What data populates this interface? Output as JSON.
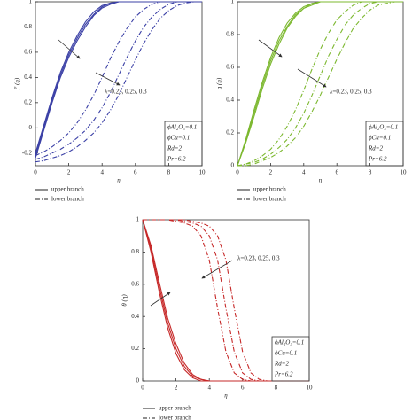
{
  "chart_data": [
    {
      "type": "line",
      "ylabel": "f′ (η)",
      "xlabel": "η",
      "x": [
        0,
        0.5,
        1,
        1.5,
        2,
        2.5,
        3,
        3.5,
        4,
        4.5,
        5,
        5.5,
        6,
        6.5,
        7,
        7.5,
        8,
        8.5,
        9,
        9.5,
        10
      ],
      "xlim": [
        0,
        10
      ],
      "xticks": [
        0,
        2,
        4,
        6,
        8,
        10
      ],
      "ylim": [
        -0.3,
        1
      ],
      "yticks": [
        -0.2,
        0,
        0.2,
        0.4,
        0.6,
        0.8,
        1
      ],
      "series": [
        {
          "name": "upper branch",
          "color": "#3b40a6",
          "dash": "solid",
          "values": [
            -0.2,
            0.02,
            0.24,
            0.44,
            0.6,
            0.73,
            0.84,
            0.92,
            0.97,
            0.99,
            1,
            1,
            1,
            1,
            1,
            1,
            1,
            1,
            1,
            1,
            1
          ]
        },
        {
          "name": "upper branch",
          "color": "#3b40a6",
          "dash": "solid",
          "values": [
            -0.22,
            0,
            0.22,
            0.42,
            0.58,
            0.71,
            0.82,
            0.9,
            0.96,
            0.99,
            1,
            1,
            1,
            1,
            1,
            1,
            1,
            1,
            1,
            1,
            1
          ]
        },
        {
          "name": "upper branch",
          "color": "#3b40a6",
          "dash": "solid",
          "values": [
            -0.24,
            -0.02,
            0.2,
            0.4,
            0.56,
            0.69,
            0.8,
            0.89,
            0.95,
            0.98,
            1,
            1,
            1,
            1,
            1,
            1,
            1,
            1,
            1,
            1,
            1
          ]
        },
        {
          "name": "lower branch",
          "color": "#3b40a6",
          "dash": "dashdot",
          "values": [
            -0.22,
            -0.19,
            -0.15,
            -0.1,
            -0.04,
            0.04,
            0.14,
            0.26,
            0.4,
            0.55,
            0.68,
            0.79,
            0.88,
            0.94,
            0.98,
            1,
            1,
            1,
            1,
            1,
            1
          ]
        },
        {
          "name": "lower branch",
          "color": "#3b40a6",
          "dash": "dashdot",
          "values": [
            -0.25,
            -0.23,
            -0.2,
            -0.17,
            -0.13,
            -0.08,
            -0.02,
            0.06,
            0.16,
            0.28,
            0.42,
            0.56,
            0.69,
            0.8,
            0.88,
            0.94,
            0.98,
            1,
            1,
            1,
            1
          ]
        },
        {
          "name": "lower branch",
          "color": "#3b40a6",
          "dash": "dashdot",
          "values": [
            -0.27,
            -0.26,
            -0.24,
            -0.22,
            -0.19,
            -0.15,
            -0.1,
            -0.04,
            0.04,
            0.14,
            0.26,
            0.4,
            0.54,
            0.67,
            0.78,
            0.87,
            0.93,
            0.97,
            0.99,
            1,
            1
          ]
        }
      ],
      "annotation": "λ=0.23, 0.25, 0.3",
      "params": [
        "ϕAl₂O₃=0.1",
        "ϕCu=0.1",
        "Rd=2",
        "Pr=6.2"
      ]
    },
    {
      "type": "line",
      "ylabel": "g (η)",
      "xlabel": "η",
      "x": [
        0,
        0.5,
        1,
        1.5,
        2,
        2.5,
        3,
        3.5,
        4,
        4.5,
        5,
        5.5,
        6,
        6.5,
        7,
        7.5,
        8,
        8.5,
        9,
        9.5,
        10
      ],
      "xlim": [
        0,
        10
      ],
      "xticks": [
        0,
        2,
        4,
        6,
        8,
        10
      ],
      "ylim": [
        0,
        1
      ],
      "yticks": [
        0,
        0.2,
        0.4,
        0.6,
        0.8,
        1
      ],
      "series": [
        {
          "name": "upper branch",
          "color": "#7cb82f",
          "dash": "solid",
          "values": [
            0,
            0.16,
            0.34,
            0.51,
            0.66,
            0.78,
            0.87,
            0.93,
            0.97,
            0.99,
            1,
            1,
            1,
            1,
            1,
            1,
            1,
            1,
            1,
            1,
            1
          ]
        },
        {
          "name": "upper branch",
          "color": "#7cb82f",
          "dash": "solid",
          "values": [
            0,
            0.15,
            0.32,
            0.49,
            0.64,
            0.76,
            0.85,
            0.92,
            0.96,
            0.99,
            1,
            1,
            1,
            1,
            1,
            1,
            1,
            1,
            1,
            1,
            1
          ]
        },
        {
          "name": "upper branch",
          "color": "#7cb82f",
          "dash": "solid",
          "values": [
            0,
            0.14,
            0.3,
            0.47,
            0.62,
            0.74,
            0.84,
            0.91,
            0.96,
            0.98,
            1,
            1,
            1,
            1,
            1,
            1,
            1,
            1,
            1,
            1,
            1
          ]
        },
        {
          "name": "lower branch",
          "color": "#7cb82f",
          "dash": "dashdot",
          "values": [
            0,
            0.01,
            0.03,
            0.06,
            0.1,
            0.16,
            0.24,
            0.34,
            0.46,
            0.59,
            0.71,
            0.81,
            0.89,
            0.94,
            0.98,
            1,
            1,
            1,
            1,
            1,
            1
          ]
        },
        {
          "name": "lower branch",
          "color": "#7cb82f",
          "dash": "dashdot",
          "values": [
            0,
            0.01,
            0.02,
            0.04,
            0.07,
            0.11,
            0.16,
            0.23,
            0.32,
            0.43,
            0.55,
            0.67,
            0.77,
            0.86,
            0.92,
            0.96,
            0.99,
            1,
            1,
            1,
            1
          ]
        },
        {
          "name": "lower branch",
          "color": "#7cb82f",
          "dash": "dashdot",
          "values": [
            0,
            0,
            0.01,
            0.03,
            0.05,
            0.08,
            0.12,
            0.17,
            0.24,
            0.33,
            0.43,
            0.54,
            0.65,
            0.75,
            0.84,
            0.9,
            0.95,
            0.98,
            0.99,
            1,
            1
          ]
        }
      ],
      "annotation": "λ=0.23, 0.25, 0.3",
      "params": [
        "ϕAl₂O₃=0.1",
        "ϕCu=0.1",
        "Rd=2",
        "Pr=6.2"
      ]
    },
    {
      "type": "line",
      "ylabel": "θ (η)",
      "xlabel": "η",
      "x": [
        0,
        0.5,
        1,
        1.5,
        2,
        2.5,
        3,
        3.5,
        4,
        4.5,
        5,
        5.5,
        6,
        6.5,
        7,
        7.5,
        8,
        8.5,
        9,
        9.5,
        10
      ],
      "xlim": [
        0,
        10
      ],
      "xticks": [
        0,
        2,
        4,
        6,
        8,
        10
      ],
      "ylim": [
        0,
        1
      ],
      "yticks": [
        0,
        0.2,
        0.4,
        0.6,
        0.8,
        1
      ],
      "series": [
        {
          "name": "upper branch",
          "color": "#c62828",
          "dash": "solid",
          "values": [
            1,
            0.8,
            0.55,
            0.33,
            0.17,
            0.07,
            0.02,
            0,
            0,
            0,
            0,
            0,
            0,
            0,
            0,
            0,
            0,
            0,
            0,
            0,
            0
          ]
        },
        {
          "name": "upper branch",
          "color": "#c62828",
          "dash": "solid",
          "values": [
            1,
            0.82,
            0.58,
            0.36,
            0.2,
            0.09,
            0.03,
            0.01,
            0,
            0,
            0,
            0,
            0,
            0,
            0,
            0,
            0,
            0,
            0,
            0,
            0
          ]
        },
        {
          "name": "upper branch",
          "color": "#c62828",
          "dash": "solid",
          "values": [
            1,
            0.84,
            0.61,
            0.39,
            0.23,
            0.11,
            0.04,
            0.01,
            0,
            0,
            0,
            0,
            0,
            0,
            0,
            0,
            0,
            0,
            0,
            0,
            0
          ]
        },
        {
          "name": "lower branch",
          "color": "#c62828",
          "dash": "dashdot",
          "values": [
            1,
            1,
            1,
            1,
            0.99,
            0.98,
            0.96,
            0.9,
            0.75,
            0.45,
            0.18,
            0.05,
            0.01,
            0,
            0,
            0,
            0,
            0,
            0,
            0,
            0
          ]
        },
        {
          "name": "lower branch",
          "color": "#c62828",
          "dash": "dashdot",
          "values": [
            1,
            1,
            1,
            1,
            1,
            0.99,
            0.98,
            0.96,
            0.9,
            0.75,
            0.45,
            0.18,
            0.05,
            0.01,
            0,
            0,
            0,
            0,
            0,
            0,
            0
          ]
        },
        {
          "name": "lower branch",
          "color": "#c62828",
          "dash": "dashdot",
          "values": [
            1,
            1,
            1,
            1,
            1,
            1,
            0.99,
            0.98,
            0.96,
            0.9,
            0.75,
            0.45,
            0.18,
            0.05,
            0.01,
            0,
            0,
            0,
            0,
            0,
            0
          ]
        }
      ],
      "annotation": "λ=0.23, 0.25, 0.3",
      "params": [
        "ϕAl₂O₃=0.1",
        "ϕCu=0.1",
        "Rd=2",
        "Pr=6.2"
      ]
    }
  ]
}
